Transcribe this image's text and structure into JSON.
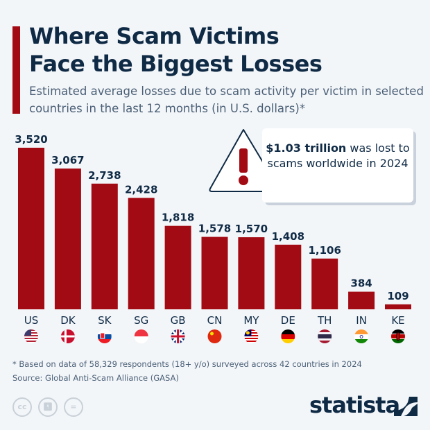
{
  "title_lines": [
    "Where Scam Victims",
    "Face the Biggest Losses"
  ],
  "subtitle": "Estimated average losses due to scam activity per victim in selected countries in the last 12 months (in U.S. dollars)*",
  "callout": {
    "bold": "$1.03 trillion",
    "rest": " was lost to scams worldwide in 2024",
    "icon": "warning-triangle-icon"
  },
  "footnote": "* Based on data of 58,329 respondents (18+ y/o) surveyed across 42 countries in 2024",
  "source": "Source: Global Anti-Scam Alliance (GASA)",
  "brand": "statista",
  "license_icons": [
    "cc-icon",
    "by-icon",
    "nd-icon"
  ],
  "colors": {
    "bar": "#a30b14",
    "title": "#0f2a45",
    "background": "#f3f6f9"
  },
  "chart_data": {
    "type": "bar",
    "categories": [
      "US",
      "DK",
      "SK",
      "SG",
      "GB",
      "CN",
      "MY",
      "DE",
      "TH",
      "IN",
      "KE"
    ],
    "values": [
      3520,
      3067,
      2738,
      2428,
      1818,
      1578,
      1570,
      1408,
      1106,
      384,
      109
    ],
    "labels": [
      "3,520",
      "3,067",
      "2,738",
      "2,428",
      "1,818",
      "1,578",
      "1,570",
      "1,408",
      "1,106",
      "384",
      "109"
    ],
    "title": "Where Scam Victims Face the Biggest Losses",
    "xlabel": "",
    "ylabel": "",
    "ylim": [
      0,
      3520
    ],
    "grid": false,
    "flags": [
      "us-flag-icon",
      "dk-flag-icon",
      "sk-flag-icon",
      "sg-flag-icon",
      "gb-flag-icon",
      "cn-flag-icon",
      "my-flag-icon",
      "de-flag-icon",
      "th-flag-icon",
      "in-flag-icon",
      "ke-flag-icon"
    ]
  }
}
